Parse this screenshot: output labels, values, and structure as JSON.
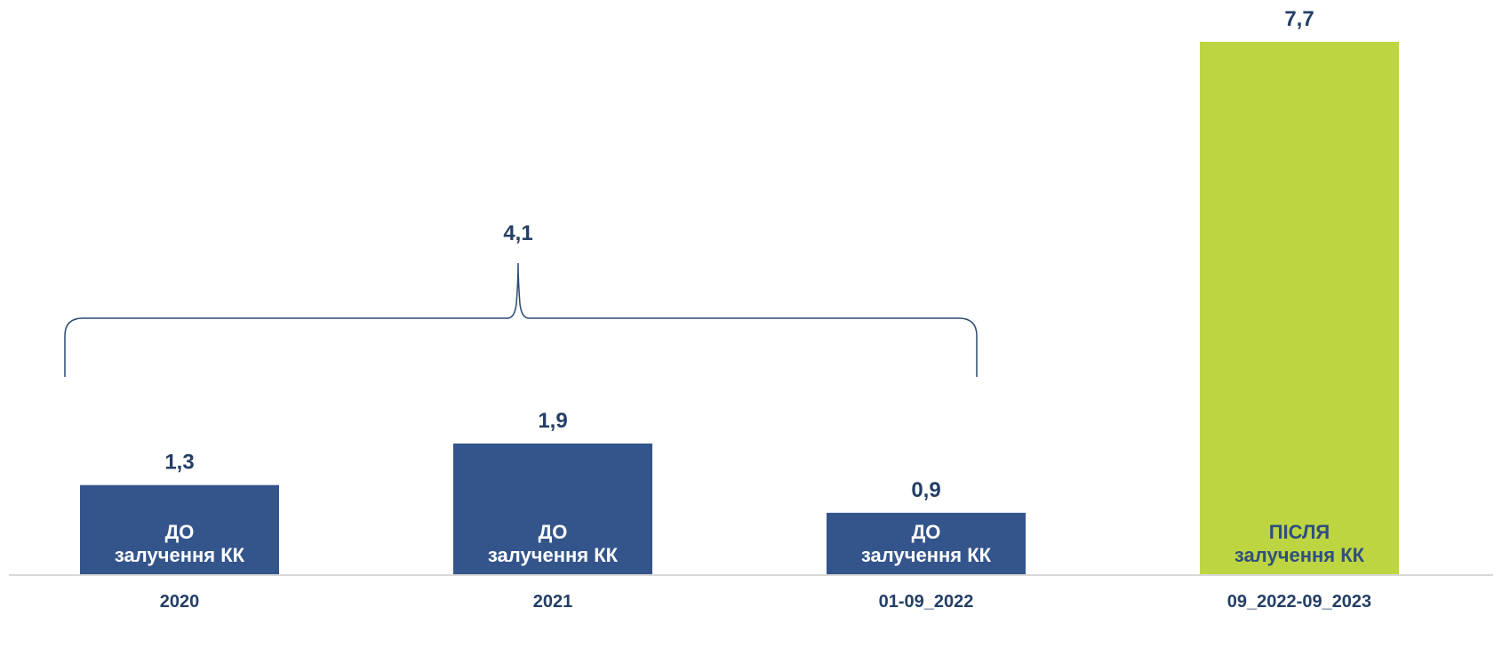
{
  "chart_data": {
    "type": "bar",
    "categories": [
      "2020",
      "2021",
      "01-09_2022",
      "09_2022-09_2023"
    ],
    "values": [
      1.3,
      1.9,
      0.9,
      7.7
    ],
    "value_labels": [
      "1,3",
      "1,9",
      "0,9",
      "7,7"
    ],
    "bar_labels": [
      [
        "ДО",
        "залучення КК"
      ],
      [
        "ДО",
        "залучення КК"
      ],
      [
        "ДО",
        "залучення КК"
      ],
      [
        "ПІСЛЯ",
        "залучення КК"
      ]
    ],
    "bar_colors": [
      "#34558b",
      "#34558b",
      "#34558b",
      "#bed542"
    ],
    "bar_label_colors": [
      "#ffffff",
      "#ffffff",
      "#ffffff",
      "#2f4f7f"
    ],
    "value_label_color": "#243f66",
    "axis_label_color": "#243f66",
    "bracket": {
      "span_categories": [
        "2020",
        "2021",
        "01-09_2022"
      ],
      "label": "4,1",
      "value": 4.1,
      "color": "#2b4a73"
    },
    "ylim": [
      0,
      8.6
    ],
    "grid": false,
    "title": "",
    "xlabel": "",
    "ylabel": ""
  }
}
